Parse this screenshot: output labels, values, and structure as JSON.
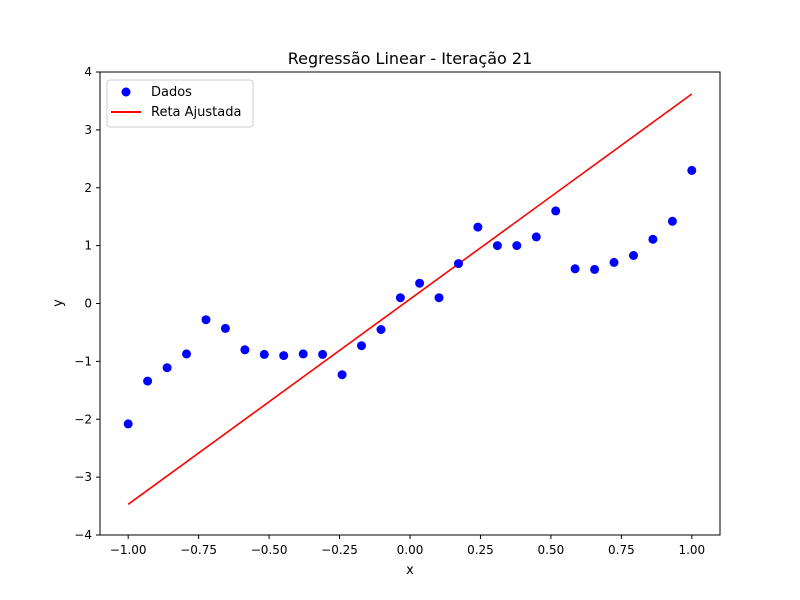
{
  "chart_data": {
    "type": "scatter",
    "title": "Regressão Linear - Iteração 21",
    "xlabel": "x",
    "ylabel": "y",
    "xlim": [
      -1.1,
      1.1
    ],
    "ylim": [
      -4,
      4
    ],
    "xticks": [
      -1.0,
      -0.75,
      -0.5,
      -0.25,
      0.0,
      0.25,
      0.5,
      0.75,
      1.0
    ],
    "xtick_labels": [
      "−1.00",
      "−0.75",
      "−0.50",
      "−0.25",
      "0.00",
      "0.25",
      "0.50",
      "0.75",
      "1.00"
    ],
    "yticks": [
      -4,
      -3,
      -2,
      -1,
      0,
      1,
      2,
      3,
      4
    ],
    "ytick_labels": [
      "−4",
      "−3",
      "−2",
      "−1",
      "0",
      "1",
      "2",
      "3",
      "4"
    ],
    "grid": false,
    "legend_position": "top-left",
    "series": [
      {
        "name": "Dados",
        "kind": "scatter",
        "color": "#0000ff",
        "x": [
          -1.0,
          -0.931,
          -0.862,
          -0.793,
          -0.724,
          -0.655,
          -0.586,
          -0.517,
          -0.448,
          -0.379,
          -0.31,
          -0.241,
          -0.172,
          -0.103,
          -0.034,
          0.034,
          0.103,
          0.172,
          0.241,
          0.31,
          0.379,
          0.448,
          0.517,
          0.586,
          0.655,
          0.724,
          0.793,
          0.862,
          0.931,
          1.0
        ],
        "y": [
          -2.08,
          -1.34,
          -1.11,
          -0.87,
          -0.28,
          -0.43,
          -0.8,
          -0.88,
          -0.9,
          -0.87,
          -0.88,
          -1.23,
          -0.73,
          -0.45,
          0.1,
          0.35,
          0.1,
          0.69,
          1.32,
          1.0,
          1.0,
          1.15,
          1.6,
          0.6,
          0.59,
          0.71,
          0.83,
          1.11,
          1.42,
          2.3
        ]
      },
      {
        "name": "Reta Ajustada",
        "kind": "line",
        "color": "#ff0000",
        "x": [
          -1.0,
          1.0
        ],
        "y": [
          -3.47,
          3.62
        ]
      }
    ]
  }
}
